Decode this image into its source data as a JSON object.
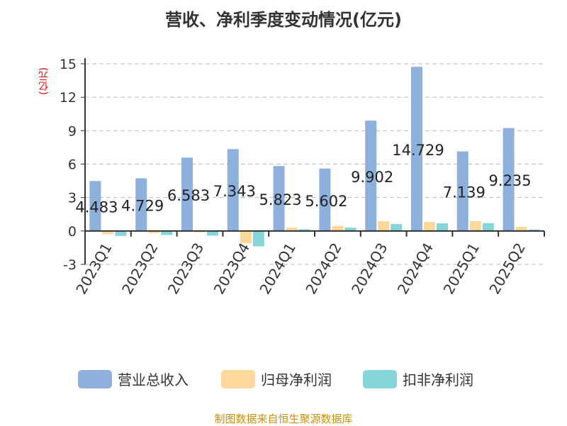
{
  "chart_data": {
    "type": "bar",
    "title": "营收、净利季度变动情况(亿元)",
    "ylabel": "(亿元)",
    "categories": [
      "2023Q1",
      "2023Q2",
      "2023Q3",
      "2023Q4",
      "2024Q1",
      "2024Q2",
      "2024Q3",
      "2024Q4",
      "2025Q1",
      "2025Q2"
    ],
    "ylim": [
      -3,
      15
    ],
    "yticks": [
      "-3",
      "0",
      "3",
      "6",
      "9",
      "12",
      "15"
    ],
    "grid": true,
    "legend_position": "bottom",
    "series": [
      {
        "name": "营业总收入",
        "color": "#8eb0dc",
        "values": [
          4.483,
          4.729,
          6.583,
          7.343,
          5.823,
          5.602,
          9.902,
          14.729,
          7.139,
          9.235
        ],
        "labels": [
          "4.483",
          "4.729",
          "6.583",
          "7.343",
          "5.823",
          "5.602",
          "9.902",
          "14.729",
          "7.139",
          "9.235"
        ]
      },
      {
        "name": "归母净利润",
        "color": "#fdd89a",
        "values": [
          -0.3,
          -0.2,
          -0.12,
          -1.1,
          0.3,
          0.45,
          0.89,
          0.81,
          0.87,
          0.38
        ]
      },
      {
        "name": "扣非净利润",
        "color": "#86d5d8",
        "values": [
          -0.45,
          -0.36,
          -0.42,
          -1.38,
          0.15,
          0.3,
          0.62,
          0.68,
          0.7,
          0.13
        ]
      }
    ]
  },
  "source": "制图数据来自恒生聚源数据库"
}
